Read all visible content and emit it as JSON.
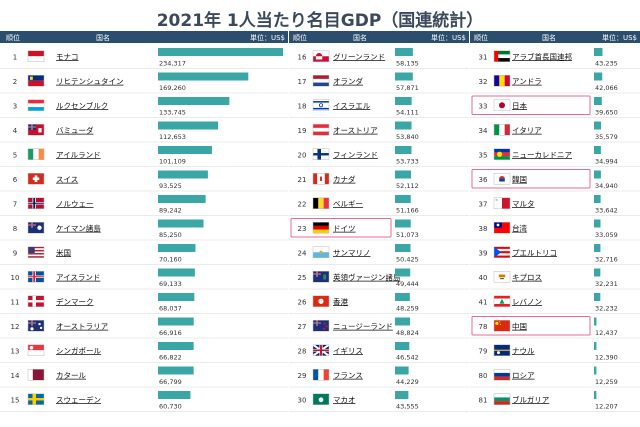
{
  "title": "2021年 1人当たり名目GDP（国連統計）",
  "headers": {
    "rank": "順位",
    "country": "国名",
    "unit": "単位：US$"
  },
  "colors": {
    "header": "#2c4e6e",
    "bar": "#3aa6a6",
    "rowLine": "#d8d8d8",
    "highlight": "#e86a9a",
    "link": "#1a1aa6"
  },
  "chart_data": {
    "type": "bar",
    "title": "2021年 1人当たり名目GDP（国連統計）",
    "xlabel": "",
    "ylabel": "単位：US$",
    "columns": [
      [
        {
          "rank": "1",
          "name": "モナコ",
          "value": 234317,
          "label": "234,317",
          "flag": "monaco"
        },
        {
          "rank": "2",
          "name": "リヒテンシュタイン",
          "value": 169260,
          "label": "169,260",
          "flag": "liechtenstein"
        },
        {
          "rank": "3",
          "name": "ルクセンブルク",
          "value": 133745,
          "label": "133,745",
          "flag": "luxembourg"
        },
        {
          "rank": "4",
          "name": "バミューダ",
          "value": 112653,
          "label": "112,653",
          "flag": "bermuda"
        },
        {
          "rank": "5",
          "name": "アイルランド",
          "value": 101109,
          "label": "101,109",
          "flag": "ireland"
        },
        {
          "rank": "6",
          "name": "スイス",
          "value": 93525,
          "label": "93,525",
          "flag": "switzerland"
        },
        {
          "rank": "7",
          "name": "ノルウェー",
          "value": 89242,
          "label": "89,242",
          "flag": "norway"
        },
        {
          "rank": "8",
          "name": "ケイマン諸島",
          "value": 85250,
          "label": "85,250",
          "flag": "cayman"
        },
        {
          "rank": "9",
          "name": "米国",
          "value": 70160,
          "label": "70,160",
          "flag": "usa"
        },
        {
          "rank": "10",
          "name": "アイスランド",
          "value": 69133,
          "label": "69,133",
          "flag": "iceland"
        },
        {
          "rank": "11",
          "name": "デンマーク",
          "value": 68037,
          "label": "68,037",
          "flag": "denmark"
        },
        {
          "rank": "12",
          "name": "オーストラリア",
          "value": 66916,
          "label": "66,916",
          "flag": "australia"
        },
        {
          "rank": "13",
          "name": "シンガポール",
          "value": 66822,
          "label": "66,822",
          "flag": "singapore"
        },
        {
          "rank": "14",
          "name": "カタール",
          "value": 66799,
          "label": "66,799",
          "flag": "qatar"
        },
        {
          "rank": "15",
          "name": "スウェーデン",
          "value": 60730,
          "label": "60,730",
          "flag": "sweden"
        }
      ],
      [
        {
          "rank": "16",
          "name": "グリーンランド",
          "value": 58135,
          "label": "58,135",
          "flag": "greenland"
        },
        {
          "rank": "17",
          "name": "オランダ",
          "value": 57871,
          "label": "57,871",
          "flag": "netherlands"
        },
        {
          "rank": "18",
          "name": "イスラエル",
          "value": 54111,
          "label": "54,111",
          "flag": "israel"
        },
        {
          "rank": "19",
          "name": "オーストリア",
          "value": 53840,
          "label": "53,840",
          "flag": "austria"
        },
        {
          "rank": "20",
          "name": "フィンランド",
          "value": 53733,
          "label": "53,733",
          "flag": "finland"
        },
        {
          "rank": "21",
          "name": "カナダ",
          "value": 52112,
          "label": "52,112",
          "flag": "canada"
        },
        {
          "rank": "22",
          "name": "ベルギー",
          "value": 51166,
          "label": "51,166",
          "flag": "belgium"
        },
        {
          "rank": "23",
          "name": "ドイツ",
          "value": 51073,
          "label": "51,073",
          "flag": "germany",
          "highlight": true
        },
        {
          "rank": "24",
          "name": "サンマリノ",
          "value": 50425,
          "label": "50,425",
          "flag": "sanmarino"
        },
        {
          "rank": "25",
          "name": "英領ヴァージン諸島",
          "value": 49444,
          "label": "49,444",
          "flag": "bvi"
        },
        {
          "rank": "26",
          "name": "香港",
          "value": 48259,
          "label": "48,259",
          "flag": "hongkong"
        },
        {
          "rank": "27",
          "name": "ニュージーランド",
          "value": 48824,
          "label": "48,824",
          "flag": "newzealand"
        },
        {
          "rank": "28",
          "name": "イギリス",
          "value": 46542,
          "label": "46,542",
          "flag": "uk"
        },
        {
          "rank": "29",
          "name": "フランス",
          "value": 44229,
          "label": "44,229",
          "flag": "france"
        },
        {
          "rank": "30",
          "name": "マカオ",
          "value": 43555,
          "label": "43,555",
          "flag": "macau"
        }
      ],
      [
        {
          "rank": "31",
          "name": "アラブ首長国連邦",
          "value": 43235,
          "label": "43,235",
          "flag": "uae"
        },
        {
          "rank": "32",
          "name": "アンドラ",
          "value": 42066,
          "label": "42,066",
          "flag": "andorra"
        },
        {
          "rank": "33",
          "name": "日本",
          "value": 39650,
          "label": "39,650",
          "flag": "japan",
          "highlight": true
        },
        {
          "rank": "34",
          "name": "イタリア",
          "value": 35579,
          "label": "35,579",
          "flag": "italy"
        },
        {
          "rank": "35",
          "name": "ニューカレドニア",
          "value": 34994,
          "label": "34,994",
          "flag": "newcaledonia"
        },
        {
          "rank": "36",
          "name": "韓国",
          "value": 34940,
          "label": "34,940",
          "flag": "korea",
          "highlight": true
        },
        {
          "rank": "37",
          "name": "マルタ",
          "value": 33642,
          "label": "33,642",
          "flag": "malta"
        },
        {
          "rank": "38",
          "name": "台湾",
          "value": 33059,
          "label": "33,059",
          "flag": "taiwan"
        },
        {
          "rank": "39",
          "name": "プエルトリコ",
          "value": 32716,
          "label": "32,716",
          "flag": "puertorico"
        },
        {
          "rank": "40",
          "name": "キプロス",
          "value": 32231,
          "label": "32,231",
          "flag": "cyprus"
        },
        {
          "rank": "41",
          "name": "レバノン",
          "value": 32232,
          "label": "32,232",
          "flag": "lebanon"
        },
        {
          "rank": "78",
          "name": "中国",
          "value": 12437,
          "label": "12,437",
          "flag": "china",
          "highlight": true
        },
        {
          "rank": "79",
          "name": "ナウル",
          "value": 12390,
          "label": "12,390",
          "flag": "nauru"
        },
        {
          "rank": "80",
          "name": "ロシア",
          "value": 12259,
          "label": "12,259",
          "flag": "russia"
        },
        {
          "rank": "81",
          "name": "ブルガリア",
          "value": 12207,
          "label": "12,207",
          "flag": "bulgaria"
        }
      ]
    ]
  }
}
